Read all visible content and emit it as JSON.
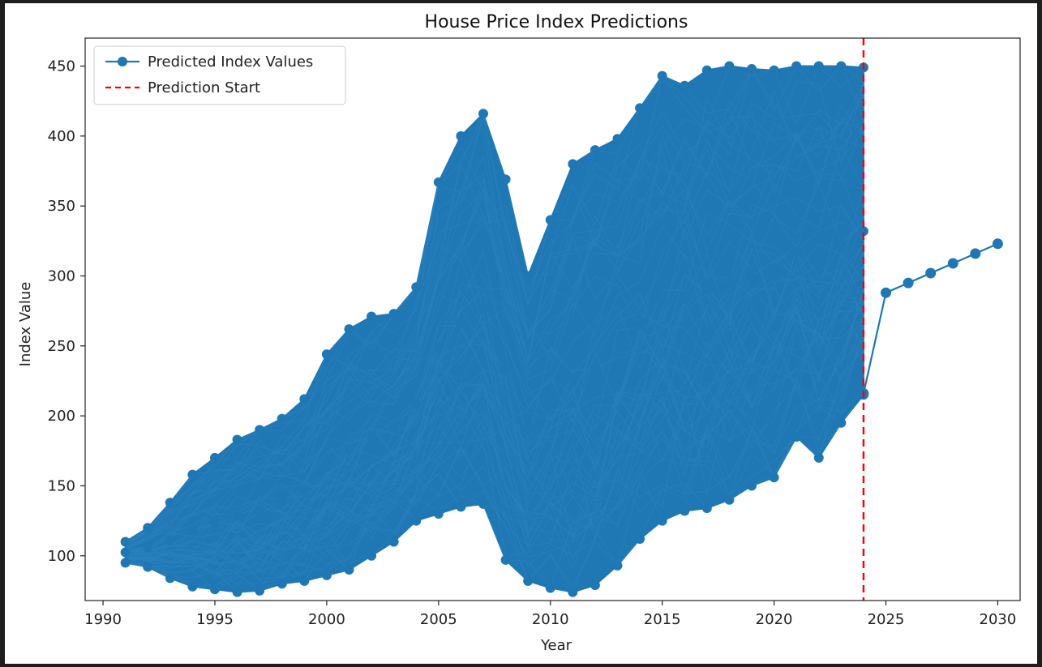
{
  "chart_data": {
    "type": "line",
    "title": "House Price Index Predictions",
    "xlabel": "Year",
    "ylabel": "Index Value",
    "xlim": [
      1989.2,
      2031.0
    ],
    "ylim": [
      68,
      470
    ],
    "xticks": [
      1990,
      1995,
      2000,
      2005,
      2010,
      2015,
      2020,
      2025,
      2030
    ],
    "yticks": [
      100,
      150,
      200,
      250,
      300,
      350,
      400,
      450
    ],
    "legend_position": "upper-left",
    "grid": false,
    "series": [
      {
        "name": "Predicted Index Values",
        "color": "#1f77b4",
        "marker": "circle",
        "history_years": [
          1991,
          1992,
          1993,
          1994,
          1995,
          1996,
          1997,
          1998,
          1999,
          2000,
          2001,
          2002,
          2003,
          2004,
          2005,
          2006,
          2007,
          2008,
          2009,
          2010,
          2011,
          2012,
          2013,
          2014,
          2015,
          2016,
          2017,
          2018,
          2019,
          2020,
          2021,
          2022,
          2023,
          2024
        ],
        "history_low": [
          95,
          92,
          84,
          78,
          76,
          74,
          75,
          80,
          82,
          86,
          90,
          100,
          110,
          125,
          130,
          135,
          137,
          97,
          82,
          77,
          74,
          79,
          93,
          112,
          125,
          132,
          134,
          140,
          150,
          156,
          185,
          170,
          195,
          215
        ],
        "history_high": [
          110,
          120,
          138,
          158,
          170,
          183,
          190,
          198,
          212,
          244,
          262,
          271,
          273,
          292,
          367,
          400,
          416,
          369,
          300,
          340,
          380,
          390,
          398,
          420,
          443,
          436,
          447,
          450,
          448,
          447,
          450,
          450,
          450,
          449
        ],
        "forecast": {
          "x": [
            2024,
            2025,
            2026,
            2027,
            2028,
            2029,
            2030
          ],
          "y": [
            216,
            288,
            295,
            302,
            309,
            316,
            323
          ]
        }
      },
      {
        "name": "Prediction Start",
        "color": "#ff0000",
        "style": "dashed",
        "x": 2024
      }
    ]
  }
}
